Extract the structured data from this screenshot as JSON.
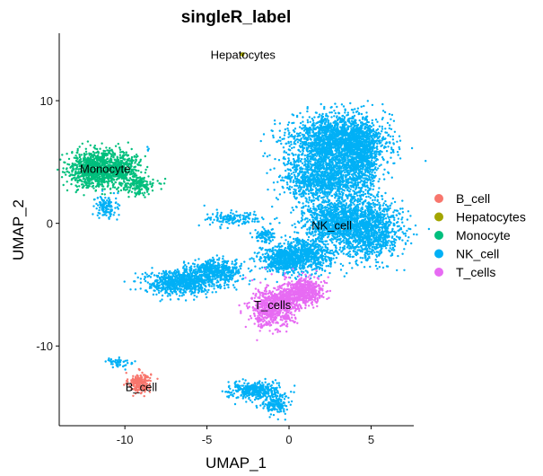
{
  "chart_data": {
    "type": "scatter",
    "title": "singleR_label",
    "xlabel": "UMAP_1",
    "ylabel": "UMAP_2",
    "xlim": [
      -14,
      7.6
    ],
    "ylim": [
      -16.5,
      15.5
    ],
    "xticks": [
      -10,
      -5,
      0,
      5
    ],
    "yticks": [
      -10,
      0,
      10
    ],
    "grid": false,
    "legend_position": "right",
    "series": [
      {
        "name": "B_cell",
        "color": "#F8766D",
        "label_pos": [
          -9,
          -13.4
        ],
        "clusters": [
          [
            -9.1,
            -13.0,
            0.45,
            0.55,
            220
          ]
        ]
      },
      {
        "name": "Hepatocytes",
        "color": "#A3A500",
        "label_pos": [
          -2.8,
          13.7
        ],
        "clusters": [
          [
            -2.8,
            13.8,
            0.06,
            0.06,
            3
          ]
        ]
      },
      {
        "name": "Monocyte",
        "color": "#00BF7D",
        "label_pos": [
          -11.2,
          4.4
        ],
        "clusters": [
          [
            -11.7,
            4.4,
            1.1,
            1.0,
            950
          ],
          [
            -10.2,
            4.6,
            0.8,
            0.8,
            300
          ],
          [
            -9.2,
            3.1,
            0.7,
            0.5,
            180
          ]
        ]
      },
      {
        "name": "NK_cell",
        "color": "#00B0F6",
        "label_pos": [
          2.6,
          -0.2
        ],
        "clusters": [
          [
            3.0,
            6.6,
            1.9,
            1.5,
            2200
          ],
          [
            2.1,
            3.5,
            1.6,
            1.2,
            1100
          ],
          [
            4.5,
            5.0,
            0.6,
            2.0,
            500
          ],
          [
            4.7,
            -0.5,
            1.4,
            1.6,
            1300
          ],
          [
            2.6,
            0.2,
            1.2,
            1.0,
            800
          ],
          [
            0.9,
            -2.6,
            1.2,
            0.9,
            700
          ],
          [
            -0.5,
            -3.0,
            0.9,
            0.7,
            400
          ],
          [
            -1.5,
            -1.0,
            0.4,
            0.4,
            100
          ],
          [
            -6.6,
            -4.8,
            1.5,
            0.7,
            750
          ],
          [
            -4.5,
            -3.9,
            1.1,
            0.6,
            450
          ],
          [
            -3.3,
            0.4,
            1.2,
            0.4,
            150
          ],
          [
            -11.1,
            1.4,
            0.5,
            0.6,
            120
          ],
          [
            -2.0,
            -13.7,
            1.1,
            0.5,
            380
          ],
          [
            -0.9,
            -14.8,
            0.5,
            0.5,
            150
          ],
          [
            -8.6,
            6.1,
            0.1,
            0.1,
            4
          ],
          [
            -10.3,
            -11.4,
            0.6,
            0.25,
            50
          ]
        ]
      },
      {
        "name": "T_cells",
        "color": "#E76BF3",
        "label_pos": [
          -1.0,
          -6.7
        ],
        "clusters": [
          [
            -1.0,
            -6.9,
            0.9,
            1.1,
            650
          ],
          [
            1.0,
            -5.5,
            0.8,
            0.7,
            450
          ],
          [
            -0.1,
            -6.0,
            0.7,
            0.6,
            250
          ]
        ]
      }
    ]
  }
}
